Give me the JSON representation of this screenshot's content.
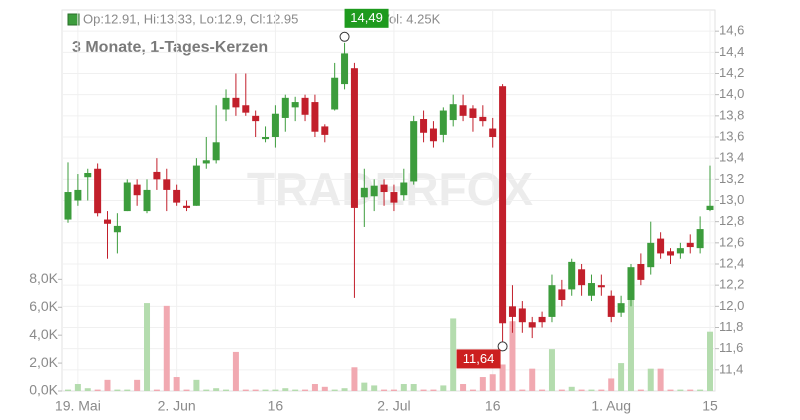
{
  "chart_data": {
    "type": "candlestick",
    "header": {
      "ohlc": "Op:12.91, Hi:13.33, Lo:12.9, Cl:12.95",
      "volume": "Vol: 4.25K"
    },
    "subtitle": "3 Monate, 1-Tages-Kerzen",
    "watermark": "TRADERFOX",
    "categories": [
      null,
      "19. Mai",
      null,
      null,
      null,
      null,
      null,
      null,
      null,
      null,
      null,
      "2. Jun",
      null,
      null,
      null,
      null,
      null,
      null,
      null,
      null,
      null,
      "16",
      null,
      null,
      null,
      null,
      null,
      null,
      null,
      null,
      null,
      null,
      null,
      "2. Jul",
      null,
      null,
      null,
      null,
      null,
      null,
      null,
      null,
      null,
      "16",
      null,
      null,
      null,
      null,
      null,
      null,
      null,
      null,
      null,
      null,
      null,
      "1. Aug",
      null,
      null,
      null,
      null,
      null,
      null,
      null,
      null,
      null,
      "15"
    ],
    "open": [
      12.82,
      13.0,
      13.22,
      13.3,
      12.82,
      12.7,
      12.9,
      13.15,
      12.9,
      13.27,
      13.2,
      13.1,
      12.95,
      12.95,
      13.35,
      13.38,
      13.86,
      13.97,
      13.9,
      13.8,
      13.58,
      13.6,
      13.78,
      13.88,
      13.97,
      13.93,
      13.7,
      13.86,
      14.1,
      14.25,
      13.03,
      13.04,
      13.15,
      13.08,
      13.05,
      13.18,
      13.77,
      13.68,
      13.62,
      13.76,
      13.9,
      13.87,
      13.79,
      13.68,
      14.08,
      12.0,
      11.98,
      11.85,
      11.9,
      11.9,
      12.16,
      12.16,
      12.35,
      12.1,
      12.2,
      12.1,
      11.94,
      12.06,
      12.4,
      12.37,
      12.64,
      12.52,
      12.5,
      12.6,
      12.55,
      12.91
    ],
    "high": [
      13.36,
      13.25,
      13.3,
      13.35,
      12.9,
      12.88,
      13.2,
      13.2,
      13.2,
      13.4,
      13.3,
      13.15,
      13.0,
      13.4,
      13.6,
      13.9,
      14.05,
      14.2,
      14.2,
      13.85,
      13.7,
      13.9,
      14.0,
      13.98,
      14.0,
      14.0,
      13.72,
      14.3,
      14.49,
      14.3,
      13.3,
      13.2,
      13.2,
      13.15,
      13.3,
      13.8,
      13.85,
      13.75,
      13.88,
      14.0,
      14.0,
      13.9,
      13.9,
      13.78,
      14.1,
      12.2,
      12.05,
      11.9,
      11.95,
      12.3,
      12.25,
      12.45,
      12.4,
      12.3,
      12.3,
      12.15,
      12.1,
      12.4,
      12.5,
      12.8,
      12.7,
      12.55,
      12.6,
      12.68,
      12.85,
      13.33
    ],
    "low": [
      12.79,
      12.95,
      13.0,
      12.85,
      12.45,
      12.5,
      12.9,
      12.95,
      12.88,
      13.1,
      12.9,
      12.95,
      12.9,
      12.95,
      13.3,
      13.35,
      13.75,
      13.8,
      13.8,
      13.6,
      13.55,
      13.5,
      13.65,
      13.75,
      13.75,
      13.6,
      13.55,
      13.85,
      14.05,
      12.08,
      12.75,
      12.9,
      12.95,
      12.9,
      13.0,
      13.15,
      13.55,
      13.5,
      13.55,
      13.7,
      13.75,
      13.65,
      13.7,
      13.5,
      11.64,
      11.75,
      11.75,
      11.7,
      11.8,
      11.85,
      12.0,
      12.1,
      12.1,
      12.05,
      12.1,
      11.85,
      11.9,
      12.0,
      12.2,
      12.3,
      12.45,
      12.4,
      12.45,
      12.5,
      12.5,
      12.9
    ],
    "close": [
      13.08,
      13.1,
      13.26,
      12.88,
      12.78,
      12.76,
      13.17,
      13.05,
      13.1,
      13.2,
      13.1,
      12.98,
      12.93,
      13.33,
      13.38,
      13.55,
      13.97,
      13.88,
      13.83,
      13.75,
      13.6,
      13.82,
      13.97,
      13.93,
      13.81,
      13.65,
      13.62,
      14.16,
      14.39,
      12.93,
      13.12,
      13.14,
      13.08,
      12.98,
      13.17,
      13.75,
      13.64,
      13.56,
      13.85,
      13.91,
      13.8,
      13.78,
      13.75,
      13.6,
      11.84,
      11.9,
      11.85,
      11.8,
      11.85,
      12.2,
      12.06,
      12.42,
      12.2,
      12.22,
      12.18,
      11.9,
      12.03,
      12.37,
      12.25,
      12.6,
      12.5,
      12.48,
      12.55,
      12.56,
      12.73,
      12.95
    ],
    "volume": [
      0.1,
      0.5,
      0.2,
      0.1,
      0.8,
      0.1,
      0.1,
      0.8,
      6.3,
      0.1,
      6.1,
      1.0,
      0.1,
      0.8,
      0.1,
      0.2,
      0.1,
      2.8,
      0.1,
      0.1,
      0.1,
      0.1,
      0.2,
      0.1,
      0.1,
      0.5,
      0.3,
      0.1,
      0.2,
      1.7,
      0.6,
      0.4,
      0.1,
      0.1,
      0.5,
      0.5,
      0.1,
      0.1,
      0.4,
      5.2,
      0.5,
      0.1,
      1.0,
      1.2,
      1.9,
      5.0,
      0.1,
      1.6,
      0.1,
      3.0,
      0.1,
      0.3,
      0.1,
      0.1,
      0.1,
      0.9,
      2.0,
      8.0,
      0.1,
      1.6,
      1.6,
      0.1,
      0.1,
      0.1,
      0.1,
      4.25
    ],
    "annotations": [
      {
        "label": "14,49",
        "value": 14.49,
        "color": "#1e9a1e"
      },
      {
        "label": "11,64",
        "value": 11.64,
        "color": "#cc1f1f"
      }
    ],
    "up_color": "#3c9c3c",
    "down_color": "#c21f2b",
    "volume_up_color": "#b4dcae",
    "volume_down_color": "#f1a9b1",
    "ylim": [
      11.2,
      14.8
    ],
    "yticks": [
      {
        "value": 11.4,
        "label": "11,4"
      },
      {
        "value": 11.6,
        "label": "11,6"
      },
      {
        "value": 11.8,
        "label": "11,8"
      },
      {
        "value": 12.0,
        "label": "12,0"
      },
      {
        "value": 12.2,
        "label": "12,2"
      },
      {
        "value": 12.4,
        "label": "12,4"
      },
      {
        "value": 12.6,
        "label": "12,6"
      },
      {
        "value": 12.8,
        "label": "12,8"
      },
      {
        "value": 13.0,
        "label": "13,0"
      },
      {
        "value": 13.2,
        "label": "13,2"
      },
      {
        "value": 13.4,
        "label": "13,4"
      },
      {
        "value": 13.6,
        "label": "13,6"
      },
      {
        "value": 13.8,
        "label": "13,8"
      },
      {
        "value": 14.0,
        "label": "14,0"
      },
      {
        "value": 14.2,
        "label": "14,2"
      },
      {
        "value": 14.4,
        "label": "14,4"
      },
      {
        "value": 14.6,
        "label": "14,6"
      }
    ],
    "y2lim": [
      0,
      27.3
    ],
    "y2ticks": [
      {
        "value": 0,
        "label": "0,0K"
      },
      {
        "value": 2,
        "label": "2,0K"
      },
      {
        "value": 4,
        "label": "4,0K"
      },
      {
        "value": 6,
        "label": "6,0K"
      },
      {
        "value": 8,
        "label": "8,0K"
      }
    ],
    "grid": true
  }
}
